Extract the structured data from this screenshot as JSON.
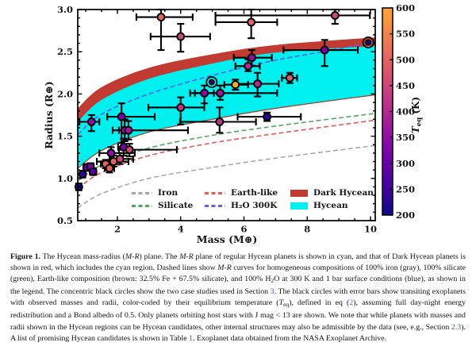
{
  "figure": {
    "caption": {
      "link_color": "#4350c8",
      "eq_link_color": "#b044a8",
      "segments": [
        {
          "t": "Figure 1.",
          "s": "b"
        },
        {
          "t": " The Hycean mass-radius ("
        },
        {
          "t": "M-R",
          "s": "i"
        },
        {
          "t": ") plane. The "
        },
        {
          "t": "M-R",
          "s": "i"
        },
        {
          "t": " plane of regular Hycean planets is shown in cyan, and that of Dark Hycean planets is shown in red, which includes the cyan region. Dashed lines show "
        },
        {
          "t": "M-R",
          "s": "i"
        },
        {
          "t": " curves for homogeneous compositions of 100% iron (gray), 100% silicate (green), Earth-like composition (brown: 32.5% Fe + 67.5% silicate), and 100% H"
        },
        {
          "t": "2",
          "s": "sub"
        },
        {
          "t": "O at 300 K and 1 bar surface conditions (blue), as shown in the legend. The concentric black circles show the two case studies used in Section "
        },
        {
          "t": "3",
          "s": "link"
        },
        {
          "t": ". The black circles with error bars show transiting exoplanets with observed masses and radii, color-coded by their equilibrium temperature ("
        },
        {
          "t": "T",
          "s": "i"
        },
        {
          "t": "eq",
          "s": "sub"
        },
        {
          "t": "), defined in eq ("
        },
        {
          "t": "2",
          "s": "link2"
        },
        {
          "t": "), assuming full day-night energy redistribution and a Bond albedo of 0.5. Only planets orbiting host stars with J mag < 13 are shown. We note that while planets with masses and radii shown in the Hycean regions can be Hycean candidates, other internal structures may also be admissible by the data (see, e.g., Section "
        },
        {
          "t": "2.3",
          "s": "link"
        },
        {
          "t": "). A list of promising Hycean candidates is shown in Table "
        },
        {
          "t": "1",
          "s": "link"
        },
        {
          "t": ". Exoplanet data obtained from the NASA Exoplanet Archive."
        }
      ]
    }
  },
  "chart_data": {
    "type": "scatter",
    "title": "",
    "xlabel": "Mass (M⊕)",
    "ylabel": "Radius (R⊕)",
    "xlim": [
      0.747,
      10.15
    ],
    "ylim": [
      0.5,
      3.0
    ],
    "x_ticks": [
      2,
      4,
      6,
      8,
      10
    ],
    "y_ticks": [
      0.5,
      1.0,
      1.5,
      2.0,
      2.5,
      3.0
    ],
    "x_minor_step": 0.5,
    "y_minor_step": 0.1,
    "grid": false,
    "legend": {
      "rows": [
        [
          {
            "label": "Iron",
            "kind": "dashed",
            "color": "#a8a8a8"
          },
          {
            "label": "Earth-like",
            "kind": "dashed",
            "color": "#e05c55"
          },
          {
            "label": "Dark Hycean",
            "kind": "patch",
            "color": "#c13b32"
          }
        ],
        [
          {
            "label": "Silicate",
            "kind": "dashed",
            "color": "#52a862"
          },
          {
            "label": "H₂O 300K",
            "kind": "dashed",
            "color": "#6262dd"
          },
          {
            "label": "Hycean",
            "kind": "patch",
            "color": "#00efef"
          }
        ]
      ]
    },
    "regions": {
      "dark_hycean": {
        "color": "#c13b32",
        "upper": [
          [
            0.75,
            1.83
          ],
          [
            1.5,
            2.08
          ],
          [
            3,
            2.31
          ],
          [
            5,
            2.47
          ],
          [
            7,
            2.58
          ],
          [
            10.15,
            2.67
          ]
        ]
      },
      "hycean": {
        "color": "#00efef",
        "edge_color": "#a3392c",
        "upper": [
          [
            0.75,
            1.67
          ],
          [
            1.5,
            1.93
          ],
          [
            3,
            2.18
          ],
          [
            5,
            2.36
          ],
          [
            7,
            2.49
          ],
          [
            10.15,
            2.57
          ]
        ],
        "lower": [
          [
            0.75,
            1.12
          ],
          [
            1.5,
            1.33
          ],
          [
            3,
            1.55
          ],
          [
            5,
            1.7
          ],
          [
            7,
            1.83
          ],
          [
            10.15,
            1.99
          ]
        ]
      }
    },
    "curves": [
      {
        "name": "iron",
        "color": "#a8a8a8",
        "pts": [
          [
            0.75,
            0.65
          ],
          [
            1.5,
            0.82
          ],
          [
            3,
            1.0
          ],
          [
            5,
            1.13
          ],
          [
            7,
            1.24
          ],
          [
            10.15,
            1.39
          ]
        ]
      },
      {
        "name": "silicate",
        "color": "#52a862",
        "pts": [
          [
            0.75,
            0.97
          ],
          [
            1.5,
            1.16
          ],
          [
            3,
            1.36
          ],
          [
            5,
            1.51
          ],
          [
            7,
            1.62
          ],
          [
            10.15,
            1.77
          ]
        ]
      },
      {
        "name": "earth-like",
        "color": "#e05c55",
        "pts": [
          [
            0.75,
            0.88
          ],
          [
            1.5,
            1.07
          ],
          [
            3,
            1.27
          ],
          [
            5,
            1.42
          ],
          [
            7,
            1.53
          ],
          [
            10.15,
            1.69
          ]
        ]
      },
      {
        "name": "h2o-300k",
        "color": "#6262dd",
        "pts": [
          [
            0.75,
            1.52
          ],
          [
            1.5,
            1.76
          ],
          [
            3,
            2.0
          ],
          [
            5,
            2.22
          ],
          [
            7,
            2.4
          ],
          [
            8.5,
            2.5
          ],
          [
            10.15,
            2.62
          ]
        ]
      }
    ],
    "points": [
      {
        "m": 3.38,
        "r": 2.91,
        "me": [
          2.6,
          4.38
        ],
        "re": [
          2.52,
          3.0
        ],
        "c": "#e16462"
      },
      {
        "m": 4.0,
        "r": 2.68,
        "me": [
          3.05,
          4.93
        ],
        "re": [
          2.5,
          2.83
        ],
        "c": "#cc4778"
      },
      {
        "m": 6.23,
        "r": 2.85,
        "me": [
          5.1,
          7.05
        ],
        "re": [
          2.66,
          3.0
        ],
        "c": "#e16462"
      },
      {
        "m": 8.88,
        "r": 2.93,
        "me": [
          5.1,
          9.98
        ],
        "re": [
          2.83,
          3.0
        ],
        "c": "#cc4778"
      },
      {
        "m": 6.25,
        "r": 2.43,
        "me": [
          5.68,
          6.88
        ],
        "re": [
          2.33,
          2.52
        ],
        "c": "#8f0da4"
      },
      {
        "m": 6.13,
        "r": 2.33,
        "me": [
          5.73,
          6.5
        ],
        "re": [
          2.27,
          2.41
        ],
        "c": "#b12a90"
      },
      {
        "m": 8.55,
        "r": 2.52,
        "me": [
          7.25,
          9.6
        ],
        "re": [
          2.33,
          2.64
        ],
        "c": "#7b02a8"
      },
      {
        "m": 9.93,
        "r": 2.61,
        "case_study": true,
        "c": "#1c0c84"
      },
      {
        "m": 4.98,
        "r": 2.14,
        "case_study": true,
        "c": "#1c0c84"
      },
      {
        "m": 7.45,
        "r": 2.19,
        "me": [
          7.2,
          7.68
        ],
        "re": [
          2.13,
          2.25
        ],
        "c": "#d8576b"
      },
      {
        "m": 5.73,
        "r": 2.11,
        "me": [
          5.38,
          6.13
        ],
        "re": [
          2.05,
          2.17
        ],
        "c": "#fca636"
      },
      {
        "m": 6.43,
        "r": 2.12,
        "me": [
          5.75,
          7.1
        ],
        "re": [
          1.97,
          2.25
        ],
        "c": "#b12a90"
      },
      {
        "m": 4.75,
        "r": 2.01,
        "me": [
          4.45,
          5.05
        ],
        "re": [
          1.89,
          2.1
        ],
        "c": "#8f0da4"
      },
      {
        "m": 5.25,
        "r": 2.01,
        "me": [
          4.3,
          7.05
        ],
        "re": [
          1.93,
          2.1
        ],
        "c": "#9c179e"
      },
      {
        "m": 4.0,
        "r": 1.84,
        "me": [
          2.98,
          4.75
        ],
        "re": [
          1.64,
          1.96
        ],
        "c": "#bd3786"
      },
      {
        "m": 5.23,
        "r": 1.67,
        "me": [
          3.98,
          6.38
        ],
        "re": [
          1.54,
          1.84
        ],
        "c": "#bd3786"
      },
      {
        "m": 6.73,
        "r": 1.73,
        "me": [
          5.8,
          7.8
        ],
        "re": [
          1.68,
          1.78
        ],
        "c": "#2d0594"
      },
      {
        "m": 1.18,
        "r": 1.67,
        "me": [
          0.8,
          1.43
        ],
        "re": [
          1.56,
          1.75
        ],
        "c": "#8f0da4"
      },
      {
        "m": 2.13,
        "r": 1.73,
        "me": [
          1.68,
          3.18
        ],
        "re": [
          1.42,
          1.89
        ],
        "c": "#7b02a8"
      },
      {
        "m": 2.23,
        "r": 1.57,
        "me": [
          2.05,
          2.42
        ],
        "re": [
          1.44,
          1.7
        ],
        "c": "#8f0da4"
      },
      {
        "m": 2.35,
        "r": 1.57,
        "me": [
          1.85,
          4.23
        ],
        "re": [
          1.46,
          1.68
        ],
        "c": "#9c179e"
      },
      {
        "m": 2.2,
        "r": 1.37,
        "me": [
          2.02,
          2.38
        ],
        "re": [
          1.27,
          1.47
        ],
        "c": "#7b02a8"
      },
      {
        "m": 2.38,
        "r": 1.34,
        "me": [
          2.05,
          3.88
        ],
        "re": [
          1.26,
          1.41
        ],
        "c": "#cc4778"
      },
      {
        "m": 1.8,
        "r": 1.3,
        "me": [
          1.43,
          2.55
        ],
        "re": [
          1.22,
          1.37
        ],
        "c": "#8f0da4"
      },
      {
        "m": 1.88,
        "r": 1.2,
        "me": [
          1.35,
          2.35
        ],
        "re": [
          1.14,
          1.27
        ],
        "c": "#e16462"
      },
      {
        "m": 2.08,
        "r": 1.23,
        "me": [
          1.75,
          2.5
        ],
        "re": [
          1.17,
          1.3
        ],
        "c": "#cc4778"
      },
      {
        "m": 1.63,
        "r": 1.17,
        "me": [
          1.48,
          1.78
        ],
        "re": [
          1.12,
          1.22
        ],
        "c": "#e16462"
      },
      {
        "m": 1.75,
        "r": 1.12,
        "me": [
          1.6,
          1.9
        ],
        "re": [
          1.07,
          1.17
        ],
        "c": "#e16462"
      },
      {
        "m": 1.03,
        "r": 1.13,
        "me": [
          0.93,
          1.13
        ],
        "re": [
          1.09,
          1.17
        ],
        "c": "#6a00a8"
      },
      {
        "m": 1.15,
        "r": 1.14,
        "me": [
          1.05,
          1.25
        ],
        "re": [
          1.1,
          1.18
        ],
        "c": "#7b02a8"
      },
      {
        "m": 1.23,
        "r": 1.08,
        "me": [
          1.13,
          1.33
        ],
        "re": [
          1.04,
          1.12
        ],
        "c": "#5601a4"
      },
      {
        "m": 0.9,
        "r": 1.05,
        "me": [
          0.82,
          0.98
        ],
        "re": [
          1.01,
          1.09
        ],
        "c": "#2d0594"
      },
      {
        "m": 0.78,
        "r": 0.9,
        "me": [
          0.75,
          0.86
        ],
        "re": [
          0.86,
          0.94
        ],
        "c": "#1b068d"
      }
    ],
    "colorbar": {
      "label_main": "T",
      "label_sub": "eq",
      "label_rest": " (K)",
      "min": 200,
      "max": 600,
      "ticks": [
        200,
        250,
        300,
        350,
        400,
        450,
        500,
        550,
        600
      ],
      "stops": [
        {
          "t": 600,
          "c": "#fca636"
        },
        {
          "t": 550,
          "c": "#f2844b"
        },
        {
          "t": 500,
          "c": "#e16462"
        },
        {
          "t": 450,
          "c": "#cc4778"
        },
        {
          "t": 400,
          "c": "#b12a90"
        },
        {
          "t": 350,
          "c": "#8f0da4"
        },
        {
          "t": 300,
          "c": "#6a00a8"
        },
        {
          "t": 250,
          "c": "#41049d"
        },
        {
          "t": 200,
          "c": "#0d0887"
        }
      ]
    }
  }
}
